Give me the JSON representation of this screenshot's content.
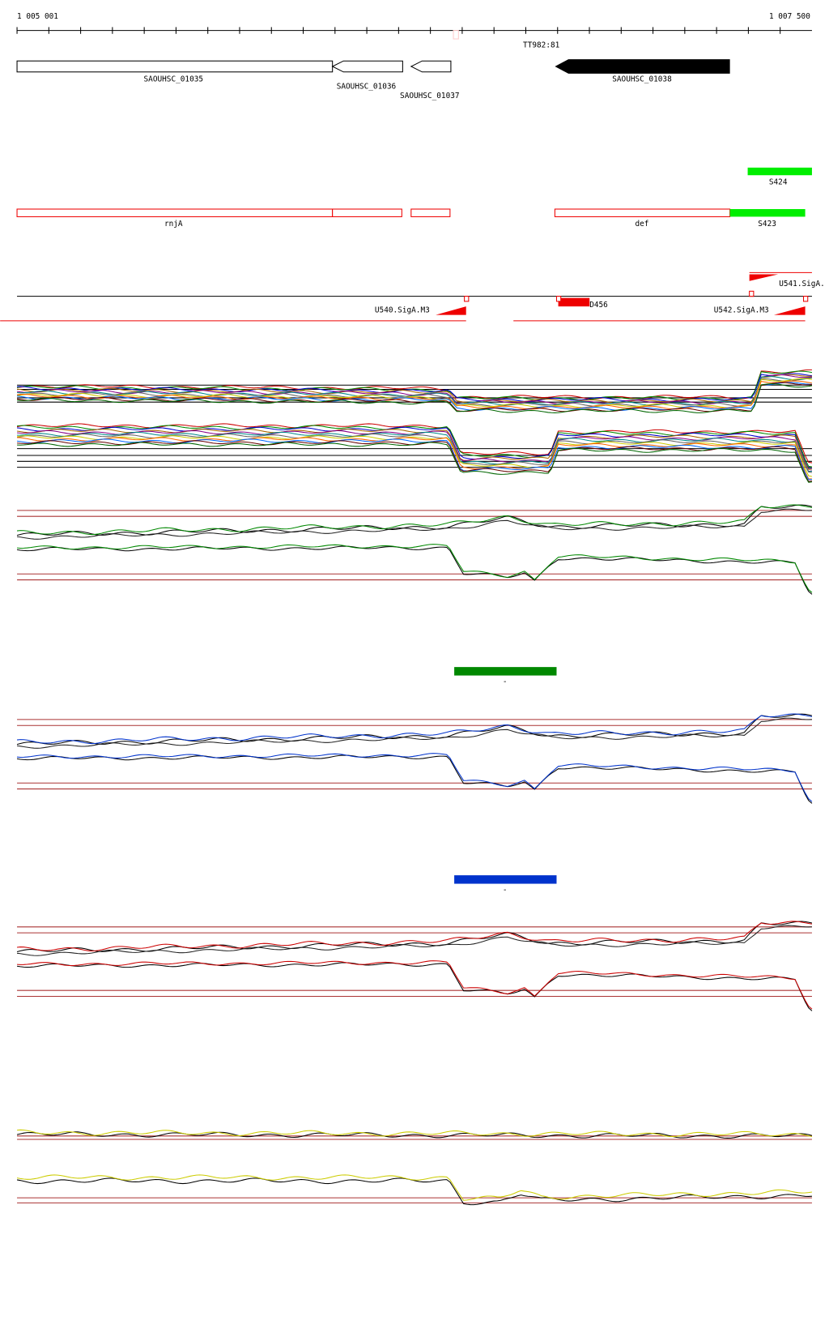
{
  "ruler": {
    "start": "1 005 001",
    "end": "1 007 500",
    "marker": "TT982:81"
  },
  "genes": [
    "SAOUHSC_01035",
    "SAOUHSC_01036",
    "SAOUHSC_01037",
    "SAOUHSC_01038"
  ],
  "features": {
    "upper": "S424",
    "operon_1": "rnjA",
    "operon_2": "def",
    "lower": "S423"
  },
  "promoters": {
    "p1": "U541.SigA.",
    "p2": "U540.SigA.M3",
    "p3": "D456",
    "p4": "U542.SigA.M3"
  },
  "strips": [
    "-",
    "-"
  ]
}
